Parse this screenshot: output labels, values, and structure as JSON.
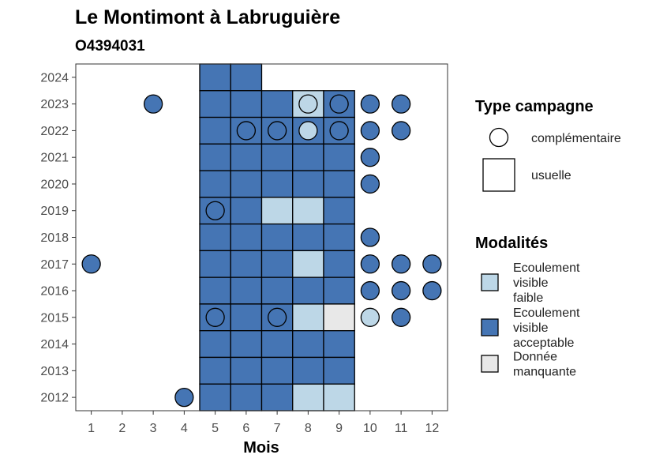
{
  "chart_data": {
    "type": "tile",
    "title": "Le Montimont à Labruguière",
    "subtitle": "O4394031",
    "xlabel": "Mois",
    "ylabel": "",
    "x_ticks": [
      "1",
      "2",
      "3",
      "4",
      "5",
      "6",
      "7",
      "8",
      "9",
      "10",
      "11",
      "12"
    ],
    "y_ticks": [
      "2012",
      "2013",
      "2014",
      "2015",
      "2016",
      "2017",
      "2018",
      "2019",
      "2020",
      "2021",
      "2022",
      "2023",
      "2024"
    ],
    "xlim": [
      0.5,
      12.5
    ],
    "ylim": [
      2011.5,
      2024.5
    ],
    "grid": false,
    "legend_position": "right",
    "colors": {
      "Ecoulement visible faible": "#bdd7e7",
      "Ecoulement visible acceptable": "#4575b4",
      "Donnée manquante": "#e8e8e8"
    },
    "legends": {
      "type": {
        "title": "Type campagne",
        "items": [
          {
            "key": "complementaire",
            "label": "complémentaire",
            "shape": "circle"
          },
          {
            "key": "usuelle",
            "label": "usuelle",
            "shape": "square"
          }
        ]
      },
      "modalites": {
        "title": "Modalités",
        "items": [
          {
            "key": "faible",
            "label": [
              "Ecoulement",
              "visible",
              "faible"
            ],
            "color": "#bdd7e7"
          },
          {
            "key": "acceptable",
            "label": [
              "Ecoulement",
              "visible",
              "acceptable"
            ],
            "color": "#4575b4"
          },
          {
            "key": "manquante",
            "label": [
              "Donnée",
              "manquante"
            ],
            "color": "#e8e8e8"
          }
        ]
      }
    },
    "usuelle": [
      {
        "year": 2024,
        "month": 5,
        "m": "acceptable"
      },
      {
        "year": 2024,
        "month": 6,
        "m": "acceptable"
      },
      {
        "year": 2023,
        "month": 5,
        "m": "acceptable"
      },
      {
        "year": 2023,
        "month": 6,
        "m": "acceptable"
      },
      {
        "year": 2023,
        "month": 7,
        "m": "acceptable"
      },
      {
        "year": 2023,
        "month": 8,
        "m": "faible"
      },
      {
        "year": 2023,
        "month": 9,
        "m": "acceptable"
      },
      {
        "year": 2022,
        "month": 5,
        "m": "acceptable"
      },
      {
        "year": 2022,
        "month": 6,
        "m": "acceptable"
      },
      {
        "year": 2022,
        "month": 7,
        "m": "acceptable"
      },
      {
        "year": 2022,
        "month": 8,
        "m": "acceptable"
      },
      {
        "year": 2022,
        "month": 9,
        "m": "acceptable"
      },
      {
        "year": 2021,
        "month": 5,
        "m": "acceptable"
      },
      {
        "year": 2021,
        "month": 6,
        "m": "acceptable"
      },
      {
        "year": 2021,
        "month": 7,
        "m": "acceptable"
      },
      {
        "year": 2021,
        "month": 8,
        "m": "acceptable"
      },
      {
        "year": 2021,
        "month": 9,
        "m": "acceptable"
      },
      {
        "year": 2020,
        "month": 5,
        "m": "acceptable"
      },
      {
        "year": 2020,
        "month": 6,
        "m": "acceptable"
      },
      {
        "year": 2020,
        "month": 7,
        "m": "acceptable"
      },
      {
        "year": 2020,
        "month": 8,
        "m": "acceptable"
      },
      {
        "year": 2020,
        "month": 9,
        "m": "acceptable"
      },
      {
        "year": 2019,
        "month": 5,
        "m": "acceptable"
      },
      {
        "year": 2019,
        "month": 6,
        "m": "acceptable"
      },
      {
        "year": 2019,
        "month": 7,
        "m": "faible"
      },
      {
        "year": 2019,
        "month": 8,
        "m": "faible"
      },
      {
        "year": 2019,
        "month": 9,
        "m": "acceptable"
      },
      {
        "year": 2018,
        "month": 5,
        "m": "acceptable"
      },
      {
        "year": 2018,
        "month": 6,
        "m": "acceptable"
      },
      {
        "year": 2018,
        "month": 7,
        "m": "acceptable"
      },
      {
        "year": 2018,
        "month": 8,
        "m": "acceptable"
      },
      {
        "year": 2018,
        "month": 9,
        "m": "acceptable"
      },
      {
        "year": 2017,
        "month": 5,
        "m": "acceptable"
      },
      {
        "year": 2017,
        "month": 6,
        "m": "acceptable"
      },
      {
        "year": 2017,
        "month": 7,
        "m": "acceptable"
      },
      {
        "year": 2017,
        "month": 8,
        "m": "faible"
      },
      {
        "year": 2017,
        "month": 9,
        "m": "acceptable"
      },
      {
        "year": 2016,
        "month": 5,
        "m": "acceptable"
      },
      {
        "year": 2016,
        "month": 6,
        "m": "acceptable"
      },
      {
        "year": 2016,
        "month": 7,
        "m": "acceptable"
      },
      {
        "year": 2016,
        "month": 8,
        "m": "acceptable"
      },
      {
        "year": 2016,
        "month": 9,
        "m": "acceptable"
      },
      {
        "year": 2015,
        "month": 5,
        "m": "acceptable"
      },
      {
        "year": 2015,
        "month": 6,
        "m": "acceptable"
      },
      {
        "year": 2015,
        "month": 7,
        "m": "acceptable"
      },
      {
        "year": 2015,
        "month": 8,
        "m": "faible"
      },
      {
        "year": 2015,
        "month": 9,
        "m": "manquante"
      },
      {
        "year": 2014,
        "month": 5,
        "m": "acceptable"
      },
      {
        "year": 2014,
        "month": 6,
        "m": "acceptable"
      },
      {
        "year": 2014,
        "month": 7,
        "m": "acceptable"
      },
      {
        "year": 2014,
        "month": 8,
        "m": "acceptable"
      },
      {
        "year": 2014,
        "month": 9,
        "m": "acceptable"
      },
      {
        "year": 2013,
        "month": 5,
        "m": "acceptable"
      },
      {
        "year": 2013,
        "month": 6,
        "m": "acceptable"
      },
      {
        "year": 2013,
        "month": 7,
        "m": "acceptable"
      },
      {
        "year": 2013,
        "month": 8,
        "m": "acceptable"
      },
      {
        "year": 2013,
        "month": 9,
        "m": "acceptable"
      },
      {
        "year": 2012,
        "month": 5,
        "m": "acceptable"
      },
      {
        "year": 2012,
        "month": 6,
        "m": "acceptable"
      },
      {
        "year": 2012,
        "month": 7,
        "m": "acceptable"
      },
      {
        "year": 2012,
        "month": 8,
        "m": "faible"
      },
      {
        "year": 2012,
        "month": 9,
        "m": "faible"
      }
    ],
    "complementaire": [
      {
        "year": 2023,
        "month": 3,
        "m": "acceptable"
      },
      {
        "year": 2023,
        "month": 8,
        "m": "faible"
      },
      {
        "year": 2023,
        "month": 9,
        "m": "acceptable"
      },
      {
        "year": 2023,
        "month": 10,
        "m": "acceptable"
      },
      {
        "year": 2023,
        "month": 11,
        "m": "acceptable"
      },
      {
        "year": 2022,
        "month": 6,
        "m": "acceptable"
      },
      {
        "year": 2022,
        "month": 7,
        "m": "acceptable"
      },
      {
        "year": 2022,
        "month": 8,
        "m": "faible"
      },
      {
        "year": 2022,
        "month": 9,
        "m": "acceptable"
      },
      {
        "year": 2022,
        "month": 10,
        "m": "acceptable"
      },
      {
        "year": 2022,
        "month": 11,
        "m": "acceptable"
      },
      {
        "year": 2021,
        "month": 10,
        "m": "acceptable"
      },
      {
        "year": 2020,
        "month": 10,
        "m": "acceptable"
      },
      {
        "year": 2019,
        "month": 5,
        "m": "acceptable"
      },
      {
        "year": 2018,
        "month": 10,
        "m": "acceptable"
      },
      {
        "year": 2017,
        "month": 1,
        "m": "acceptable"
      },
      {
        "year": 2017,
        "month": 10,
        "m": "acceptable"
      },
      {
        "year": 2017,
        "month": 11,
        "m": "acceptable"
      },
      {
        "year": 2017,
        "month": 12,
        "m": "acceptable"
      },
      {
        "year": 2016,
        "month": 10,
        "m": "acceptable"
      },
      {
        "year": 2016,
        "month": 11,
        "m": "acceptable"
      },
      {
        "year": 2016,
        "month": 12,
        "m": "acceptable"
      },
      {
        "year": 2015,
        "month": 5,
        "m": "acceptable"
      },
      {
        "year": 2015,
        "month": 7,
        "m": "acceptable"
      },
      {
        "year": 2015,
        "month": 10,
        "m": "faible"
      },
      {
        "year": 2015,
        "month": 11,
        "m": "acceptable"
      },
      {
        "year": 2012,
        "month": 4,
        "m": "acceptable"
      }
    ]
  }
}
